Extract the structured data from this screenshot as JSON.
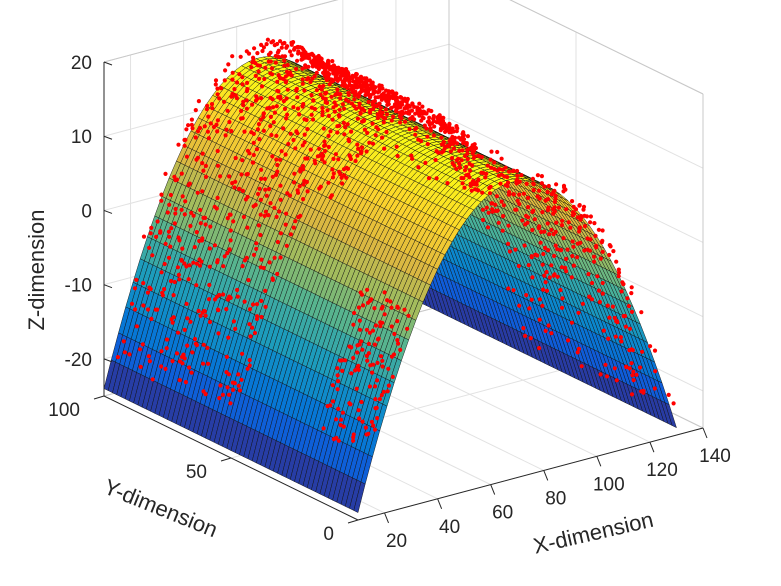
{
  "chart_data": {
    "type": "surface3d",
    "title": "",
    "xlabel": "X-dimension",
    "ylabel": "Y-dimension",
    "zlabel": "Z-dimension",
    "xlim": [
      10,
      140
    ],
    "ylim": [
      0,
      100
    ],
    "zlim": [
      -25,
      20
    ],
    "x_ticks": [
      20,
      40,
      60,
      80,
      100,
      120,
      140
    ],
    "y_ticks": [
      0,
      50,
      100
    ],
    "z_ticks": [
      -20,
      -10,
      0,
      10,
      20
    ],
    "x_tick_labels": [
      "20",
      "40",
      "60",
      "80",
      "100",
      "120",
      "140"
    ],
    "y_tick_labels": [
      "0",
      "50",
      "100"
    ],
    "z_tick_labels": [
      "-20",
      "-10",
      "0",
      "10",
      "20"
    ],
    "grid": true,
    "surface": {
      "model": "z = z0 - k*(x - xc)^2",
      "peak_x": 68,
      "peak_z": 15,
      "x_range": [
        10,
        130
      ],
      "y_range": [
        0,
        100
      ],
      "edge_z": -24,
      "colormap": "parula"
    },
    "scatter": {
      "color": "#ff0000",
      "description_z_clip": "points drawn where data lies above the fitted surface"
    }
  }
}
